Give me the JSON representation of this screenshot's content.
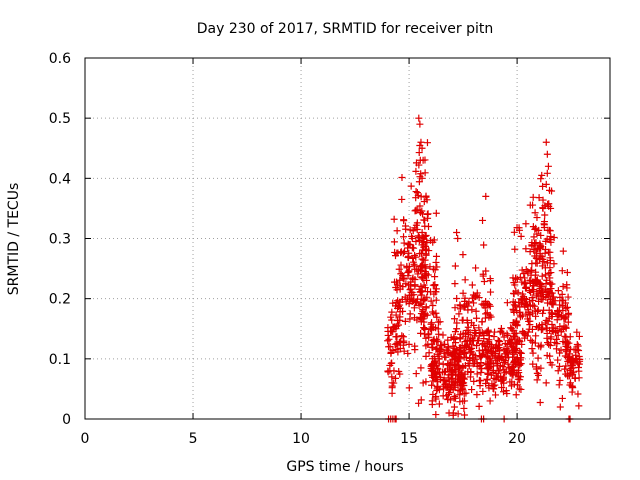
{
  "chart_data": {
    "type": "scatter",
    "title": "Day 230 of 2017, SRMTID for receiver pitn",
    "xlabel": "GPS time / hours",
    "ylabel": "SRMTID / TECUs",
    "xlim": [
      0,
      24.3
    ],
    "ylim": [
      0,
      0.6
    ],
    "xticks": [
      0,
      5,
      10,
      15,
      20
    ],
    "yticks": [
      0,
      0.1,
      0.2,
      0.3,
      0.4,
      0.5,
      0.6
    ],
    "xtick_labels": [
      "0",
      "5",
      "10",
      "15",
      "20"
    ],
    "ytick_labels": [
      "0",
      "0.1",
      "0.2",
      "0.3",
      "0.4",
      "0.5",
      "0.6"
    ],
    "grid": true,
    "marker": "plus",
    "color": "#e00000",
    "seed": 230,
    "clusters": [
      {
        "x0": 14.0,
        "x1": 14.6,
        "mean": 0.12,
        "spread": 0.07,
        "count": 45
      },
      {
        "x0": 14.3,
        "x1": 15.8,
        "mean": 0.22,
        "spread": 0.11,
        "count": 180
      },
      {
        "x0": 15.3,
        "x1": 15.9,
        "mean": 0.36,
        "spread": 0.09,
        "count": 40
      },
      {
        "x0": 15.5,
        "x1": 16.3,
        "mean": 0.2,
        "spread": 0.1,
        "count": 90
      },
      {
        "x0": 16.0,
        "x1": 17.6,
        "mean": 0.08,
        "spread": 0.05,
        "count": 200
      },
      {
        "x0": 17.0,
        "x1": 18.0,
        "mean": 0.13,
        "spread": 0.08,
        "count": 110
      },
      {
        "x0": 18.0,
        "x1": 18.8,
        "mean": 0.14,
        "spread": 0.09,
        "count": 90
      },
      {
        "x0": 18.6,
        "x1": 20.2,
        "mean": 0.1,
        "spread": 0.05,
        "count": 180
      },
      {
        "x0": 19.8,
        "x1": 21.2,
        "mean": 0.19,
        "spread": 0.09,
        "count": 170
      },
      {
        "x0": 20.6,
        "x1": 21.6,
        "mean": 0.28,
        "spread": 0.1,
        "count": 90
      },
      {
        "x0": 21.3,
        "x1": 22.4,
        "mean": 0.16,
        "spread": 0.08,
        "count": 120
      },
      {
        "x0": 22.2,
        "x1": 22.9,
        "mean": 0.09,
        "spread": 0.04,
        "count": 70
      }
    ],
    "peaks": [
      {
        "x": 15.45,
        "y": 0.5
      },
      {
        "x": 15.5,
        "y": 0.49
      },
      {
        "x": 15.55,
        "y": 0.46
      },
      {
        "x": 15.6,
        "y": 0.45
      },
      {
        "x": 15.52,
        "y": 0.43
      },
      {
        "x": 15.65,
        "y": 0.43
      },
      {
        "x": 15.6,
        "y": 0.4
      },
      {
        "x": 18.55,
        "y": 0.37
      },
      {
        "x": 18.4,
        "y": 0.33
      },
      {
        "x": 17.2,
        "y": 0.31
      },
      {
        "x": 17.25,
        "y": 0.3
      },
      {
        "x": 21.35,
        "y": 0.46
      },
      {
        "x": 21.4,
        "y": 0.44
      },
      {
        "x": 21.45,
        "y": 0.42
      },
      {
        "x": 21.5,
        "y": 0.38
      },
      {
        "x": 21.35,
        "y": 0.39
      },
      {
        "x": 21.55,
        "y": 0.35
      },
      {
        "x": 21.2,
        "y": 0.35
      },
      {
        "x": 15.15,
        "y": 0.3
      },
      {
        "x": 15.05,
        "y": 0.29
      },
      {
        "x": 15.85,
        "y": 0.34
      },
      {
        "x": 15.9,
        "y": 0.32
      }
    ],
    "baseline": [
      {
        "x": 14.05,
        "y": 0.0
      },
      {
        "x": 14.15,
        "y": 0.0
      },
      {
        "x": 14.25,
        "y": 0.0
      },
      {
        "x": 14.35,
        "y": 0.0
      },
      {
        "x": 14.4,
        "y": 0.0
      },
      {
        "x": 18.35,
        "y": 0.0
      },
      {
        "x": 18.45,
        "y": 0.0
      },
      {
        "x": 19.4,
        "y": 0.0
      },
      {
        "x": 22.4,
        "y": 0.0
      },
      {
        "x": 22.45,
        "y": 0.0
      },
      {
        "x": 16.85,
        "y": 0.01
      },
      {
        "x": 17.05,
        "y": 0.01
      },
      {
        "x": 17.1,
        "y": 0.02
      },
      {
        "x": 18.75,
        "y": 0.03
      },
      {
        "x": 19.0,
        "y": 0.04
      },
      {
        "x": 20.1,
        "y": 0.05
      },
      {
        "x": 14.3,
        "y": 0.08
      },
      {
        "x": 14.2,
        "y": 0.07
      },
      {
        "x": 14.05,
        "y": 0.12
      },
      {
        "x": 22.0,
        "y": 0.02
      }
    ]
  }
}
